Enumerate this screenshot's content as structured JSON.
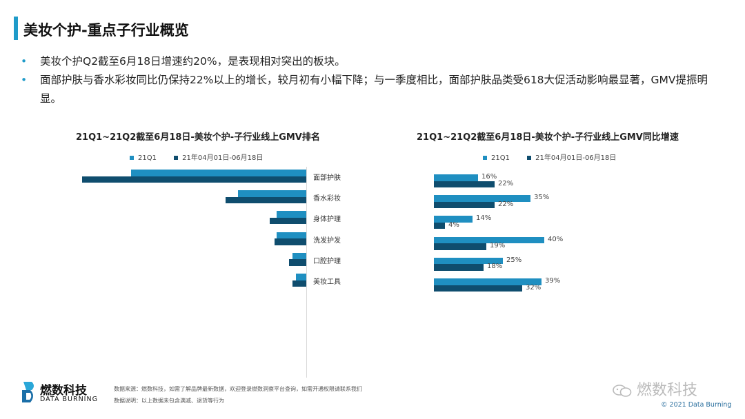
{
  "header": {
    "title": "美妆个护-重点子行业概览"
  },
  "bullets": [
    "美妆个护Q2截至6月18日增速约20%，是表现相对突出的板块。",
    "面部护肤与香水彩妆同比仍保持22%以上的增长，较月初有小幅下降；与一季度相比，面部护肤品类受618大促活动影响最显著，GMV提振明显。"
  ],
  "colors": {
    "accent": "#1f9bc9",
    "series1": "#1f8fc1",
    "series2": "#0f4d6e"
  },
  "chart_data": [
    {
      "type": "bar",
      "orientation": "horizontal-left",
      "title": "21Q1~21Q2截至6月18日-美妆个护-子行业线上GMV排名",
      "categories": [
        "面部护肤",
        "香水彩妆",
        "身体护理",
        "洗发护发",
        "口腔护理",
        "美妆工具"
      ],
      "series": [
        {
          "name": "21Q1",
          "values": [
            100,
            39,
            17,
            17,
            8,
            6
          ]
        },
        {
          "name": "21年04月01日-06月18日",
          "values": [
            128,
            46,
            21,
            18,
            10,
            8
          ]
        }
      ],
      "xlim": [
        0,
        130
      ]
    },
    {
      "type": "bar",
      "orientation": "horizontal",
      "title": "21Q1~21Q2截至6月18日-美妆个护-子行业线上GMV同比增速",
      "categories": [
        "面部护肤",
        "香水彩妆",
        "身体护理",
        "洗发护发",
        "口腔护理",
        "美妆工具"
      ],
      "series": [
        {
          "name": "21Q1",
          "values": [
            16,
            35,
            14,
            40,
            25,
            39
          ],
          "labels": [
            "16%",
            "35%",
            "14%",
            "40%",
            "25%",
            "39%"
          ]
        },
        {
          "name": "21年04月01日-06月18日",
          "values": [
            22,
            22,
            4,
            19,
            18,
            32
          ],
          "labels": [
            "22%",
            "22%",
            "4%",
            "19%",
            "18%",
            "32%"
          ]
        }
      ],
      "xlim": [
        0,
        45
      ]
    }
  ],
  "footer": {
    "logo_cn": "燃数科技",
    "logo_en": "DATA BURNING",
    "source_line1": "数据来源：燃数科技，如需了解品牌最新数据，欢迎登录燃数洞察平台查询，如需开通权限请联系我们",
    "source_line2": "数据说明：以上数据未包含满减、退货等行为",
    "watermark": "燃数科技",
    "copyright": "© 2021 Data Burning"
  }
}
